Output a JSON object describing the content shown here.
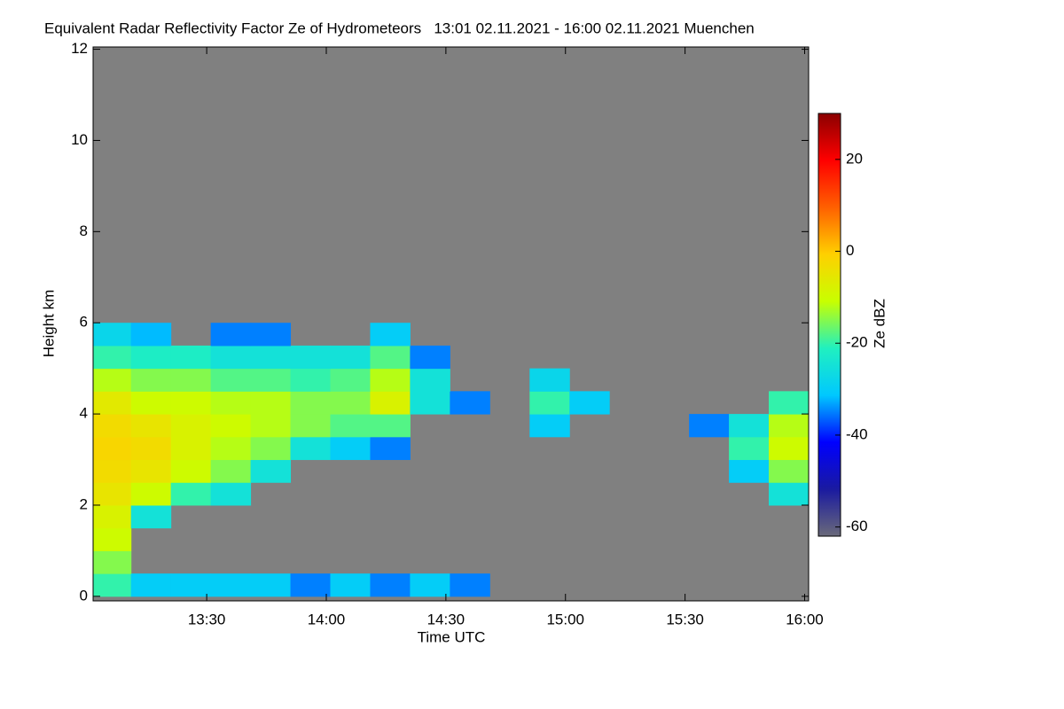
{
  "chart_data": {
    "type": "heatmap",
    "title": "Equivalent Radar Reflectivity Factor Ze of Hydrometeors   13:01 02.11.2021 - 16:00 02.11.2021 Muenchen",
    "x_label": "Time UTC",
    "y_label": "Height km",
    "colorbar_label": "Ze dBZ",
    "x": [
      786,
      796,
      806,
      816,
      826,
      836,
      846,
      856,
      866,
      876,
      886,
      896,
      906,
      916,
      926,
      936,
      946,
      956
    ],
    "y": [
      0.25,
      0.75,
      1.25,
      1.75,
      2.25,
      2.75,
      3.25,
      3.75,
      4.25,
      4.75,
      5.25,
      5.75
    ],
    "z": [
      [
        -20,
        -30,
        -30,
        -30,
        -30,
        -35,
        -30,
        -35,
        -30,
        -35,
        null,
        null,
        null,
        null,
        null,
        null,
        null,
        null
      ],
      [
        -15,
        null,
        null,
        null,
        null,
        null,
        null,
        null,
        null,
        null,
        null,
        null,
        null,
        null,
        null,
        null,
        null,
        null
      ],
      [
        -10,
        null,
        null,
        null,
        null,
        null,
        null,
        null,
        null,
        null,
        null,
        null,
        null,
        null,
        null,
        null,
        null,
        null
      ],
      [
        -8,
        -25,
        null,
        null,
        null,
        null,
        null,
        null,
        null,
        null,
        null,
        null,
        null,
        null,
        null,
        null,
        null,
        null
      ],
      [
        -5,
        -10,
        -20,
        -25,
        null,
        null,
        null,
        null,
        null,
        null,
        null,
        null,
        null,
        null,
        null,
        null,
        null,
        -25
      ],
      [
        -3,
        -5,
        -10,
        -15,
        -25,
        null,
        null,
        null,
        null,
        null,
        null,
        null,
        null,
        null,
        null,
        null,
        -30,
        -15
      ],
      [
        -2,
        -3,
        -8,
        -12,
        -15,
        -25,
        -30,
        -35,
        null,
        null,
        null,
        null,
        null,
        null,
        null,
        null,
        -20,
        -10
      ],
      [
        -3,
        -5,
        -8,
        -10,
        -12,
        -15,
        -18,
        -18,
        null,
        null,
        null,
        -30,
        null,
        null,
        null,
        -35,
        -25,
        -12
      ],
      [
        -6,
        -10,
        -10,
        -12,
        -12,
        -15,
        -15,
        -8,
        -25,
        -35,
        null,
        -20,
        -30,
        null,
        null,
        null,
        null,
        -20
      ],
      [
        -12,
        -15,
        -15,
        -18,
        -18,
        -20,
        -18,
        -12,
        -25,
        null,
        null,
        -28,
        null,
        null,
        null,
        null,
        null,
        null
      ],
      [
        -20,
        -22,
        -22,
        -25,
        -25,
        -25,
        -25,
        -18,
        -35,
        null,
        null,
        null,
        null,
        null,
        null,
        null,
        null,
        null
      ],
      [
        -28,
        -32,
        null,
        -35,
        -35,
        null,
        null,
        -30,
        null,
        null,
        null,
        null,
        null,
        null,
        null,
        null,
        null,
        null
      ]
    ],
    "xlim": [
      781.5,
      961
    ],
    "xticks": [
      {
        "value": 810,
        "label": "13:30"
      },
      {
        "value": 840,
        "label": "14:00"
      },
      {
        "value": 870,
        "label": "14:30"
      },
      {
        "value": 900,
        "label": "15:00"
      },
      {
        "value": 930,
        "label": "15:30"
      },
      {
        "value": 960,
        "label": "16:00"
      }
    ],
    "ylim": [
      -0.1,
      12.05
    ],
    "yticks": [
      0,
      2,
      4,
      6,
      8,
      10,
      12
    ],
    "clim": [
      -62,
      30
    ],
    "cticks": [
      -60,
      -40,
      -20,
      0,
      20
    ],
    "background_color": "#808080",
    "colormap": [
      "#6a6a7a",
      "#1a1aa0",
      "#0000ff",
      "#00c8ff",
      "#20f0c0",
      "#c8ff00",
      "#ffd000",
      "#ff6000",
      "#ff0000",
      "#8b0000"
    ]
  }
}
